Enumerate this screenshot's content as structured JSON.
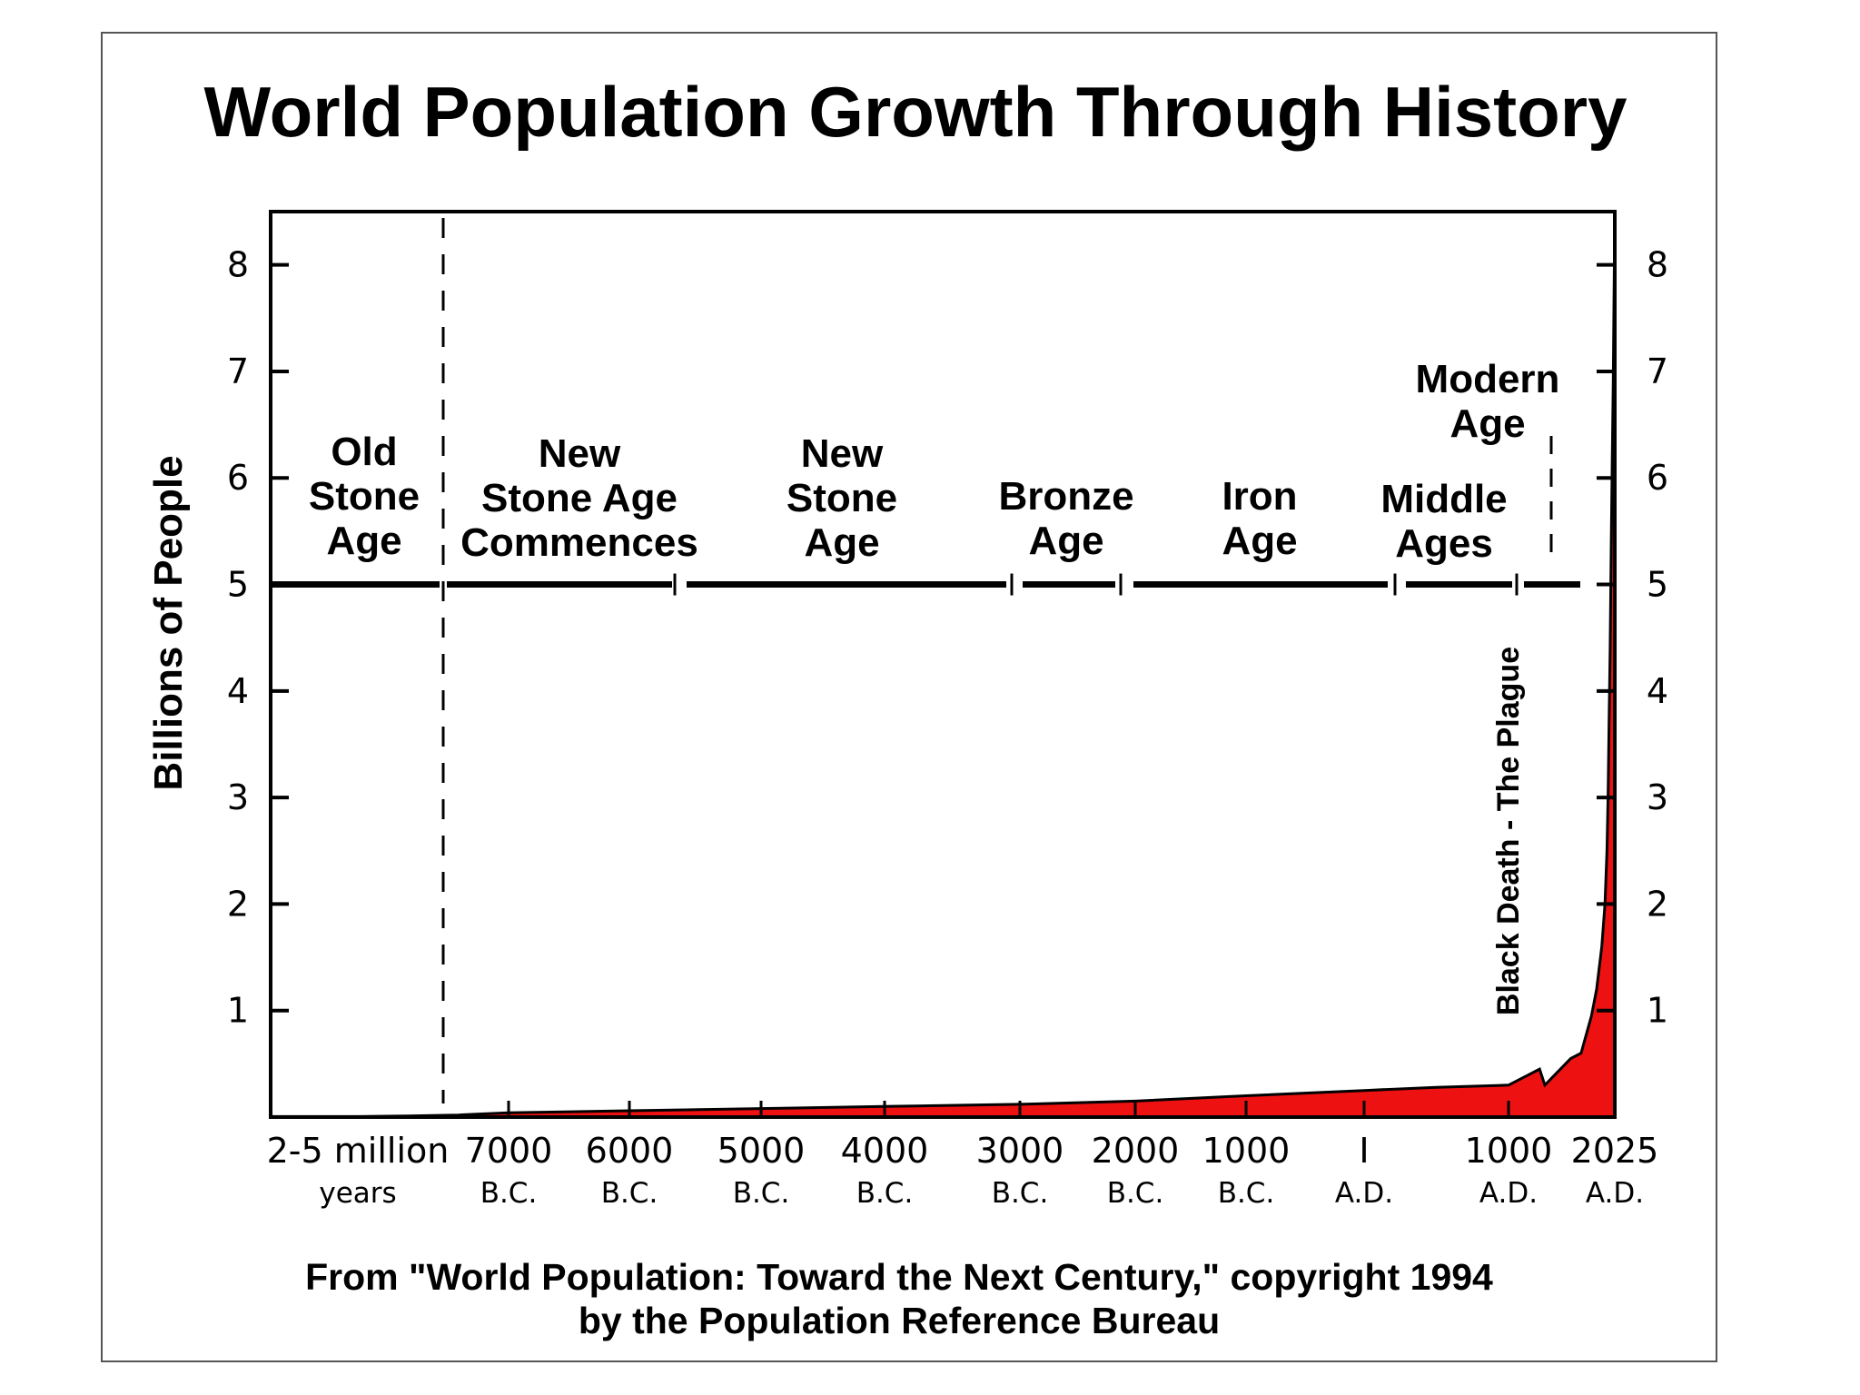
{
  "chart_data": {
    "type": "area",
    "title": "World Population Growth Through History",
    "ylabel": "Billions of People",
    "ylim": [
      0,
      8.5
    ],
    "yticks": [
      "1",
      "2",
      "3",
      "4",
      "5",
      "6",
      "7",
      "8"
    ],
    "x_categories": [
      {
        "main": "2-5 million",
        "sub": "years"
      },
      {
        "main": "7000",
        "sub": "B.C."
      },
      {
        "main": "6000",
        "sub": "B.C."
      },
      {
        "main": "5000",
        "sub": "B.C."
      },
      {
        "main": "4000",
        "sub": "B.C."
      },
      {
        "main": "3000",
        "sub": "B.C."
      },
      {
        "main": "2000",
        "sub": "B.C."
      },
      {
        "main": "1000",
        "sub": "B.C."
      },
      {
        "main": "I",
        "sub": "A.D."
      },
      {
        "main": "1000",
        "sub": "A.D."
      },
      {
        "main": "2025",
        "sub": "A.D."
      }
    ],
    "series": [
      {
        "color": "#ee1111",
        "x": [
          -10000,
          -9000,
          -8000,
          -7000,
          -6000,
          -5000,
          -4000,
          -3000,
          -2000,
          -1000,
          1,
          500,
          1000,
          1200,
          1300,
          1350,
          1400,
          1500,
          1600,
          1700,
          1800,
          1850,
          1900,
          1930,
          1950,
          1960,
          1970,
          1980,
          1990,
          2000,
          2010,
          2025
        ],
        "y": [
          0.005,
          0.01,
          0.02,
          0.04,
          0.06,
          0.08,
          0.1,
          0.12,
          0.15,
          0.2,
          0.25,
          0.28,
          0.3,
          0.4,
          0.45,
          0.3,
          0.35,
          0.45,
          0.55,
          0.6,
          0.95,
          1.2,
          1.6,
          2.0,
          2.5,
          3.0,
          3.7,
          4.4,
          5.3,
          6.1,
          6.9,
          8.5
        ]
      }
    ],
    "eras": [
      {
        "lines": [
          "Old",
          "Stone",
          "Age"
        ]
      },
      {
        "lines": [
          "New",
          "Stone Age",
          "Commences"
        ]
      },
      {
        "lines": [
          "New",
          "Stone",
          "Age"
        ]
      },
      {
        "lines": [
          "Bronze",
          "Age"
        ]
      },
      {
        "lines": [
          "Iron",
          "Age"
        ]
      },
      {
        "lines": [
          "Middle",
          "Ages"
        ]
      },
      {
        "lines": [
          "Modern",
          "Age"
        ]
      }
    ],
    "annotations": [
      "Black Death - The Plague"
    ],
    "grid": false
  },
  "source": {
    "line1": "From \"World Population: Toward the Next Century,\" copyright 1994",
    "line2": "by the Population Reference Bureau"
  }
}
